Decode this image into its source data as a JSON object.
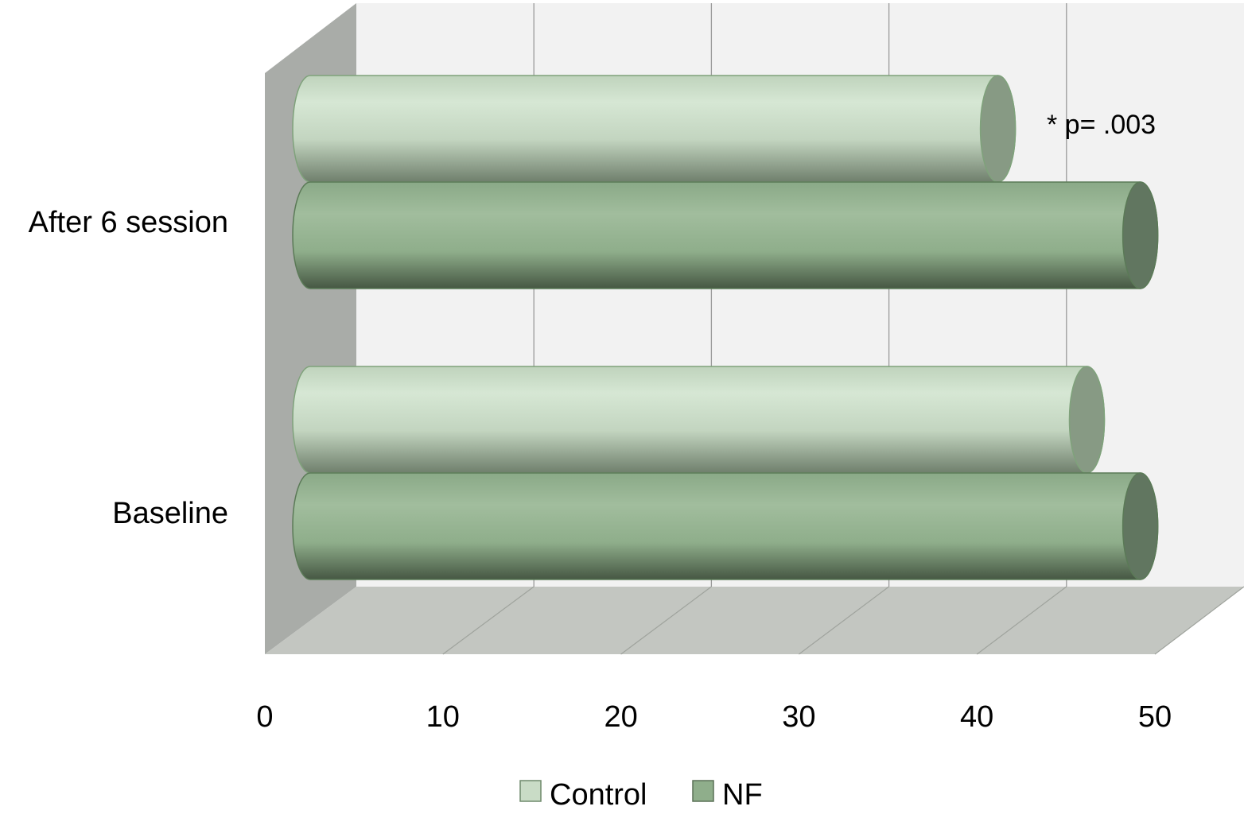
{
  "chart_data": {
    "type": "bar",
    "orientation": "horizontal",
    "style": "3d-cylinder",
    "categories": [
      "After 6 session",
      "Baseline"
    ],
    "series": [
      {
        "name": "Control",
        "values": [
          41,
          46
        ],
        "color": "#c9dcc6"
      },
      {
        "name": "NF",
        "values": [
          49,
          49
        ],
        "color": "#8fae8b"
      }
    ],
    "xlim": [
      0,
      50
    ],
    "xticks": [
      0,
      10,
      20,
      30,
      40,
      50
    ],
    "grid": true,
    "legend_position": "bottom",
    "annotations": [
      {
        "text": "* p= .003",
        "category": "After 6 session"
      }
    ]
  },
  "colors": {
    "back_wall": "#f2f2f2",
    "side_wall": "#a9aca8",
    "floor": "#c3c6c1",
    "gridline": "#9a9a9a"
  }
}
